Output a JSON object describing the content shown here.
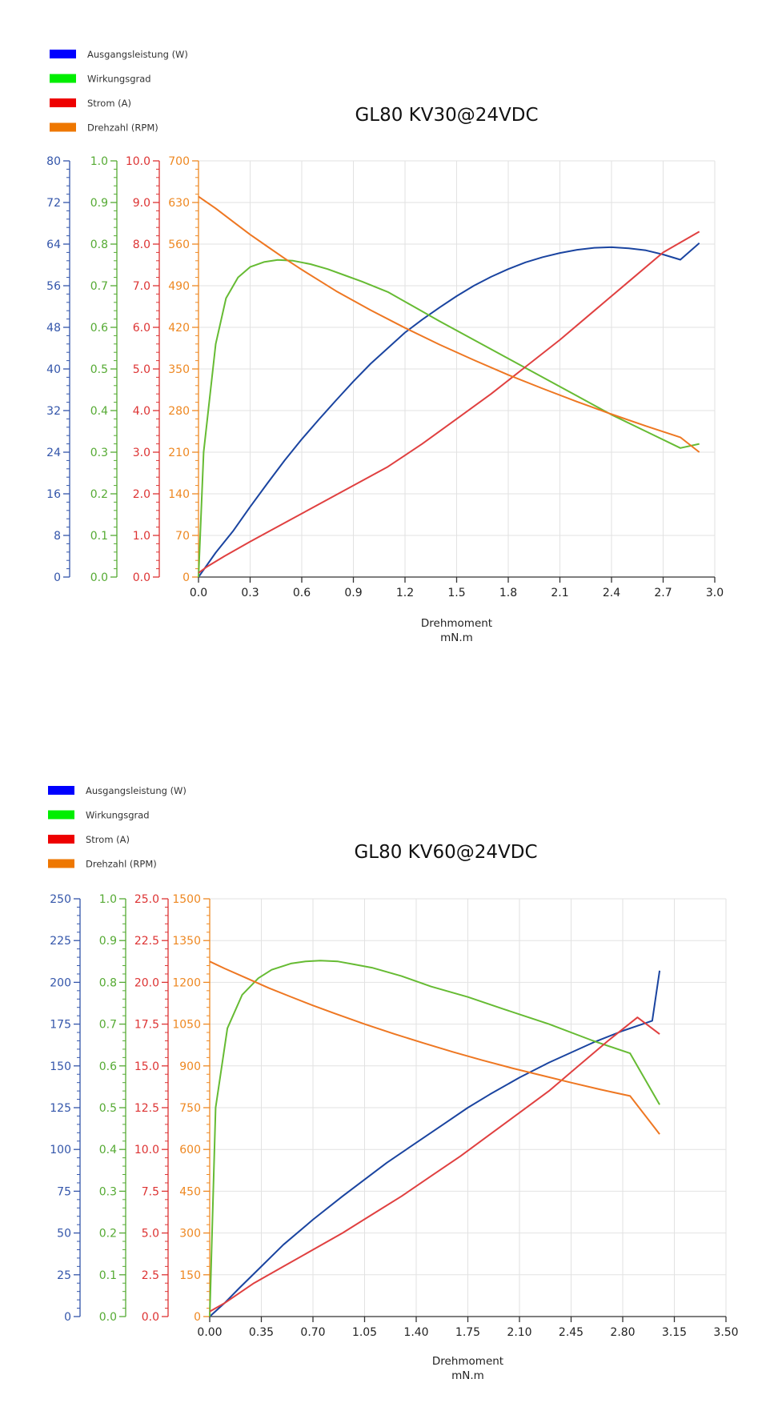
{
  "chart_data": [
    {
      "type": "line",
      "title": "GL80 KV30@24VDC",
      "xlabel": "Drehmoment",
      "xunit": "mN.m",
      "xlim": [
        0,
        3.0
      ],
      "x_ticks": [
        "0.0",
        "0.3",
        "0.6",
        "0.9",
        "1.2",
        "1.5",
        "1.8",
        "2.1",
        "2.4",
        "2.7",
        "3.0"
      ],
      "grid": true,
      "legend_position": "top-left",
      "legend": [
        {
          "label": "Ausgangsleistung (W)",
          "color": "#0000ff"
        },
        {
          "label": "Wirkungsgrad",
          "color": "#00ee00"
        },
        {
          "label": "Strom (A)",
          "color": "#ee0000"
        },
        {
          "label": "Drehzahl (RPM)",
          "color": "#ee7700"
        }
      ],
      "y_axes": [
        {
          "id": "power",
          "color": "#3355aa",
          "min": 0,
          "max": 80,
          "ticks": [
            "0",
            "8",
            "16",
            "24",
            "32",
            "40",
            "48",
            "56",
            "64",
            "72",
            "80"
          ]
        },
        {
          "id": "eff",
          "color": "#55aa33",
          "min": 0,
          "max": 1.0,
          "ticks": [
            "0.0",
            "0.1",
            "0.2",
            "0.3",
            "0.4",
            "0.5",
            "0.6",
            "0.7",
            "0.8",
            "0.9",
            "1.0"
          ]
        },
        {
          "id": "current",
          "color": "#dd3333",
          "min": 0,
          "max": 10.0,
          "ticks": [
            "0.0",
            "1.0",
            "2.0",
            "3.0",
            "4.0",
            "5.0",
            "6.0",
            "7.0",
            "8.0",
            "9.0",
            "10.0"
          ]
        },
        {
          "id": "rpm",
          "color": "#ee8822",
          "min": 0,
          "max": 700,
          "ticks": [
            "0",
            "70",
            "140",
            "210",
            "280",
            "350",
            "420",
            "490",
            "560",
            "630",
            "700"
          ]
        }
      ],
      "series": [
        {
          "name": "Ausgangsleistung (W)",
          "axis": "power",
          "color": "#1a44a0",
          "points": [
            [
              0,
              0
            ],
            [
              0.1,
              4.7
            ],
            [
              0.2,
              8.8
            ],
            [
              0.3,
              13.5
            ],
            [
              0.4,
              18
            ],
            [
              0.5,
              22.4
            ],
            [
              0.6,
              26.5
            ],
            [
              0.7,
              30.3
            ],
            [
              0.8,
              34
            ],
            [
              0.9,
              37.6
            ],
            [
              1.0,
              41
            ],
            [
              1.1,
              44
            ],
            [
              1.2,
              47
            ],
            [
              1.3,
              49.5
            ],
            [
              1.4,
              51.8
            ],
            [
              1.5,
              54
            ],
            [
              1.6,
              56
            ],
            [
              1.7,
              57.7
            ],
            [
              1.8,
              59.2
            ],
            [
              1.9,
              60.5
            ],
            [
              2.0,
              61.5
            ],
            [
              2.1,
              62.3
            ],
            [
              2.2,
              62.9
            ],
            [
              2.3,
              63.3
            ],
            [
              2.4,
              63.4
            ],
            [
              2.5,
              63.2
            ],
            [
              2.6,
              62.8
            ],
            [
              2.7,
              62
            ],
            [
              2.8,
              61
            ],
            [
              2.91,
              64.2
            ]
          ]
        },
        {
          "name": "Wirkungsgrad",
          "axis": "eff",
          "color": "#66bb33",
          "points": [
            [
              0,
              0
            ],
            [
              0.03,
              0.3
            ],
            [
              0.1,
              0.56
            ],
            [
              0.16,
              0.67
            ],
            [
              0.23,
              0.72
            ],
            [
              0.3,
              0.745
            ],
            [
              0.38,
              0.757
            ],
            [
              0.46,
              0.762
            ],
            [
              0.55,
              0.76
            ],
            [
              0.65,
              0.752
            ],
            [
              0.75,
              0.74
            ],
            [
              0.85,
              0.725
            ],
            [
              0.95,
              0.71
            ],
            [
              1.1,
              0.685
            ],
            [
              1.25,
              0.65
            ],
            [
              1.4,
              0.615
            ],
            [
              1.6,
              0.57
            ],
            [
              1.8,
              0.525
            ],
            [
              2.0,
              0.48
            ],
            [
              2.2,
              0.435
            ],
            [
              2.4,
              0.39
            ],
            [
              2.6,
              0.35
            ],
            [
              2.8,
              0.31
            ],
            [
              2.91,
              0.32
            ]
          ]
        },
        {
          "name": "Strom (A)",
          "axis": "current",
          "color": "#e04040",
          "points": [
            [
              0,
              0.1
            ],
            [
              0.05,
              0.25
            ],
            [
              0.15,
              0.5
            ],
            [
              0.3,
              0.85
            ],
            [
              0.5,
              1.3
            ],
            [
              0.7,
              1.75
            ],
            [
              0.9,
              2.2
            ],
            [
              1.1,
              2.65
            ],
            [
              1.3,
              3.2
            ],
            [
              1.5,
              3.8
            ],
            [
              1.7,
              4.4
            ],
            [
              1.9,
              5.05
            ],
            [
              2.1,
              5.7
            ],
            [
              2.3,
              6.4
            ],
            [
              2.5,
              7.1
            ],
            [
              2.7,
              7.8
            ],
            [
              2.91,
              8.3
            ]
          ]
        },
        {
          "name": "Drehzahl (RPM)",
          "axis": "rpm",
          "color": "#ee7722",
          "points": [
            [
              0,
              640
            ],
            [
              0.1,
              620
            ],
            [
              0.2,
              598
            ],
            [
              0.3,
              576
            ],
            [
              0.4,
              556
            ],
            [
              0.5,
              536
            ],
            [
              0.6,
              517
            ],
            [
              0.7,
              499
            ],
            [
              0.8,
              481
            ],
            [
              0.9,
              465
            ],
            [
              1.0,
              449
            ],
            [
              1.2,
              419
            ],
            [
              1.4,
              391
            ],
            [
              1.6,
              365
            ],
            [
              1.8,
              340
            ],
            [
              2.0,
              317
            ],
            [
              2.2,
              295
            ],
            [
              2.4,
              274
            ],
            [
              2.6,
              254
            ],
            [
              2.8,
              235
            ],
            [
              2.91,
              210
            ]
          ]
        }
      ]
    },
    {
      "type": "line",
      "title": "GL80 KV60@24VDC",
      "xlabel": "Drehmoment",
      "xunit": "mN.m",
      "xlim": [
        0,
        3.5
      ],
      "x_ticks": [
        "0.00",
        "0.35",
        "0.70",
        "1.05",
        "1.40",
        "1.75",
        "2.10",
        "2.45",
        "2.80",
        "3.15",
        "3.50"
      ],
      "grid": true,
      "legend_position": "top-left",
      "legend": [
        {
          "label": "Ausgangsleistung (W)",
          "color": "#0000ff"
        },
        {
          "label": "Wirkungsgrad",
          "color": "#00ee00"
        },
        {
          "label": "Strom (A)",
          "color": "#ee0000"
        },
        {
          "label": "Drehzahl (RPM)",
          "color": "#ee7700"
        }
      ],
      "y_axes": [
        {
          "id": "power",
          "color": "#3355aa",
          "min": 0,
          "max": 250,
          "ticks": [
            "0",
            "25",
            "50",
            "75",
            "100",
            "125",
            "150",
            "175",
            "200",
            "225",
            "250"
          ]
        },
        {
          "id": "eff",
          "color": "#55aa33",
          "min": 0,
          "max": 1.0,
          "ticks": [
            "0.0",
            "0.1",
            "0.2",
            "0.3",
            "0.4",
            "0.5",
            "0.6",
            "0.7",
            "0.8",
            "0.9",
            "1.0"
          ]
        },
        {
          "id": "current",
          "color": "#dd3333",
          "min": 0,
          "max": 25.0,
          "ticks": [
            "0.0",
            "2.5",
            "5.0",
            "7.5",
            "10.0",
            "12.5",
            "15.0",
            "17.5",
            "20.0",
            "22.5",
            "25.0"
          ]
        },
        {
          "id": "rpm",
          "color": "#ee8822",
          "min": 0,
          "max": 1500,
          "ticks": [
            "0",
            "150",
            "300",
            "450",
            "600",
            "750",
            "900",
            "1050",
            "1200",
            "1350",
            "1500"
          ]
        }
      ],
      "series": [
        {
          "name": "Ausgangsleistung (W)",
          "axis": "power",
          "color": "#1a44a0",
          "points": [
            [
              0,
              0
            ],
            [
              0.1,
              8
            ],
            [
              0.2,
              17
            ],
            [
              0.35,
              30
            ],
            [
              0.5,
              43
            ],
            [
              0.7,
              58
            ],
            [
              0.9,
              72
            ],
            [
              1.05,
              82
            ],
            [
              1.2,
              92
            ],
            [
              1.4,
              104
            ],
            [
              1.6,
              116
            ],
            [
              1.75,
              125
            ],
            [
              1.9,
              133
            ],
            [
              2.1,
              143
            ],
            [
              2.3,
              152
            ],
            [
              2.45,
              158
            ],
            [
              2.6,
              164
            ],
            [
              2.8,
              171
            ],
            [
              3.0,
              177
            ],
            [
              3.05,
              207
            ]
          ]
        },
        {
          "name": "Wirkungsgrad",
          "axis": "eff",
          "color": "#66bb33",
          "points": [
            [
              0,
              0
            ],
            [
              0.04,
              0.5
            ],
            [
              0.12,
              0.69
            ],
            [
              0.22,
              0.77
            ],
            [
              0.33,
              0.81
            ],
            [
              0.42,
              0.83
            ],
            [
              0.55,
              0.845
            ],
            [
              0.65,
              0.85
            ],
            [
              0.75,
              0.852
            ],
            [
              0.87,
              0.85
            ],
            [
              0.98,
              0.843
            ],
            [
              1.1,
              0.835
            ],
            [
              1.3,
              0.815
            ],
            [
              1.5,
              0.79
            ],
            [
              1.75,
              0.765
            ],
            [
              2.0,
              0.735
            ],
            [
              2.3,
              0.7
            ],
            [
              2.6,
              0.66
            ],
            [
              2.85,
              0.63
            ],
            [
              3.05,
              0.507
            ]
          ]
        },
        {
          "name": "Strom (A)",
          "axis": "current",
          "color": "#e04040",
          "points": [
            [
              0,
              0.3
            ],
            [
              0.1,
              0.8
            ],
            [
              0.3,
              2.0
            ],
            [
              0.5,
              3.0
            ],
            [
              0.7,
              4.0
            ],
            [
              0.9,
              5.0
            ],
            [
              1.1,
              6.1
            ],
            [
              1.3,
              7.2
            ],
            [
              1.5,
              8.4
            ],
            [
              1.7,
              9.6
            ],
            [
              1.9,
              10.9
            ],
            [
              2.1,
              12.2
            ],
            [
              2.3,
              13.5
            ],
            [
              2.5,
              15
            ],
            [
              2.7,
              16.5
            ],
            [
              2.9,
              17.9
            ],
            [
              3.05,
              16.9
            ]
          ]
        },
        {
          "name": "Drehzahl (RPM)",
          "axis": "rpm",
          "color": "#ee7722",
          "points": [
            [
              0,
              1275
            ],
            [
              0.1,
              1250
            ],
            [
              0.25,
              1215
            ],
            [
              0.4,
              1180
            ],
            [
              0.55,
              1148
            ],
            [
              0.7,
              1117
            ],
            [
              0.85,
              1088
            ],
            [
              1.05,
              1050
            ],
            [
              1.25,
              1015
            ],
            [
              1.45,
              982
            ],
            [
              1.65,
              950
            ],
            [
              1.85,
              920
            ],
            [
              2.05,
              892
            ],
            [
              2.25,
              866
            ],
            [
              2.45,
              840
            ],
            [
              2.65,
              815
            ],
            [
              2.85,
              792
            ],
            [
              3.05,
              655
            ]
          ]
        }
      ]
    }
  ]
}
